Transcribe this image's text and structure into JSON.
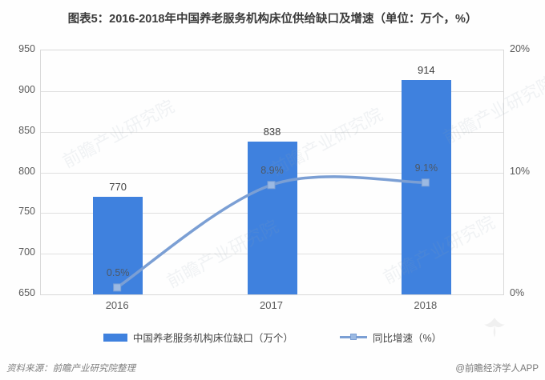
{
  "title": "图表5：2016-2018年中国养老服务机构床位供给缺口及增速（单位：万个，%）",
  "watermark_text": "前瞻产业研究院",
  "footer": {
    "source": "资料来源：前瞻产业研究院整理",
    "credit": "@前瞻经济学人APP"
  },
  "colors": {
    "bar": "#3F81DE",
    "line": "#7B9FD4",
    "marker": "#9BB9E2",
    "grid": "#E0E0E0",
    "plot_border": "#D9D9D9",
    "axis_text": "#595959",
    "title_text": "#3A3A3A",
    "value_label": "#404040",
    "footer_text": "#808080"
  },
  "chart_data": {
    "type": "bar+line combo",
    "categories": [
      "2016",
      "2017",
      "2018"
    ],
    "series": [
      {
        "name": "中国养老服务机构床位缺口（万个）",
        "type": "bar",
        "axis": "left",
        "values": [
          770,
          838,
          914
        ],
        "labels": [
          "770",
          "838",
          "914"
        ]
      },
      {
        "name": "同比增速（%）",
        "type": "line",
        "axis": "right",
        "values": [
          0.5,
          8.9,
          9.1
        ],
        "labels": [
          "0.5%",
          "8.9%",
          "9.1%"
        ]
      }
    ],
    "left_axis": {
      "min": 650,
      "max": 950,
      "step": 50,
      "ticks": [
        "950",
        "900",
        "850",
        "800",
        "750",
        "700",
        "650"
      ]
    },
    "right_axis": {
      "min": 0,
      "max": 20,
      "ticks": [
        "20%",
        "10%",
        "0%"
      ]
    },
    "legend_position": "bottom",
    "grid": "horizontal"
  }
}
